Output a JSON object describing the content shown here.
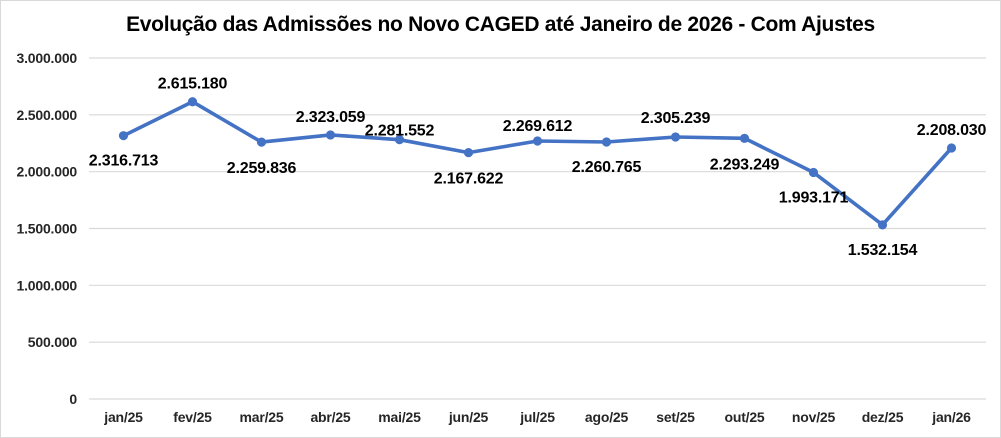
{
  "chart_data": {
    "type": "line",
    "title": "Evolução das Admissões no Novo CAGED até Janeiro de 2026 - Com Ajustes",
    "xlabel": "",
    "ylabel": "",
    "categories": [
      "jan/25",
      "fev/25",
      "mar/25",
      "abr/25",
      "mai/25",
      "jun/25",
      "jul/25",
      "ago/25",
      "set/25",
      "out/25",
      "nov/25",
      "dez/25",
      "jan/26"
    ],
    "values": [
      2316713,
      2615180,
      2259836,
      2323059,
      2281552,
      2167622,
      2269612,
      2260765,
      2305239,
      2293249,
      1993171,
      1532154,
      2208030
    ],
    "point_labels": [
      "2.316.713",
      "2.615.180",
      "2.259.836",
      "2.323.059",
      "2.281.552",
      "2.167.622",
      "2.269.612",
      "2.260.765",
      "2.305.239",
      "2.293.249",
      "1.993.171",
      "1.532.154",
      "2.208.030"
    ],
    "label_dy": [
      30,
      -13,
      31,
      -13,
      -4,
      31,
      -10,
      30,
      -14,
      31,
      30,
      30,
      -13
    ],
    "ylim": [
      0,
      3000000
    ],
    "y_ticks": [
      {
        "value": 3000000,
        "label": "3.000.000"
      },
      {
        "value": 2500000,
        "label": "2.500.000"
      },
      {
        "value": 2000000,
        "label": "2.000.000"
      },
      {
        "value": 1500000,
        "label": "1.500.000"
      },
      {
        "value": 1000000,
        "label": "1.000.000"
      },
      {
        "value": 500000,
        "label": "500.000"
      },
      {
        "value": 0,
        "label": "0"
      }
    ],
    "legend": "none",
    "grid": "horizontal",
    "colors": {
      "line": "#4472C4",
      "marker": "#4472C4",
      "gridline": "#d9d9d9",
      "axis_text": "#262626",
      "label_text": "#000000",
      "background": "#ffffff",
      "border": "#d9d9d9"
    }
  }
}
